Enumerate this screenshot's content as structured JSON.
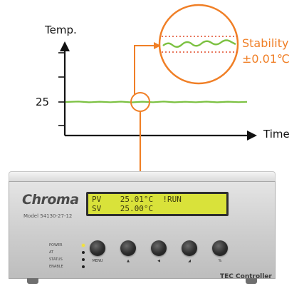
{
  "diagram": {
    "y_axis_label": "Temp.",
    "x_axis_label": "Time",
    "y_tick_label": "25",
    "annotation_line1": "Stability",
    "annotation_line2": "±0.01℃"
  },
  "device": {
    "brand": "Chroma",
    "model": "Model 54130-27-12",
    "lcd_line1": "PV    25.01°C  !RUN",
    "lcd_line2": "SV    25.00°C",
    "indicators": [
      {
        "label": "POWER",
        "lit": true
      },
      {
        "label": "AT",
        "lit": false
      },
      {
        "label": "STATUS",
        "lit": false
      },
      {
        "label": "ENABLE",
        "lit": false
      }
    ],
    "menu_label": "MENU",
    "button_glyphs": [
      "▲",
      "◀",
      "◢",
      "%"
    ],
    "title": "TEC Controller"
  },
  "colors": {
    "accent": "#f07f26",
    "signal": "#7cc142",
    "lcd": "#d9e23a"
  }
}
